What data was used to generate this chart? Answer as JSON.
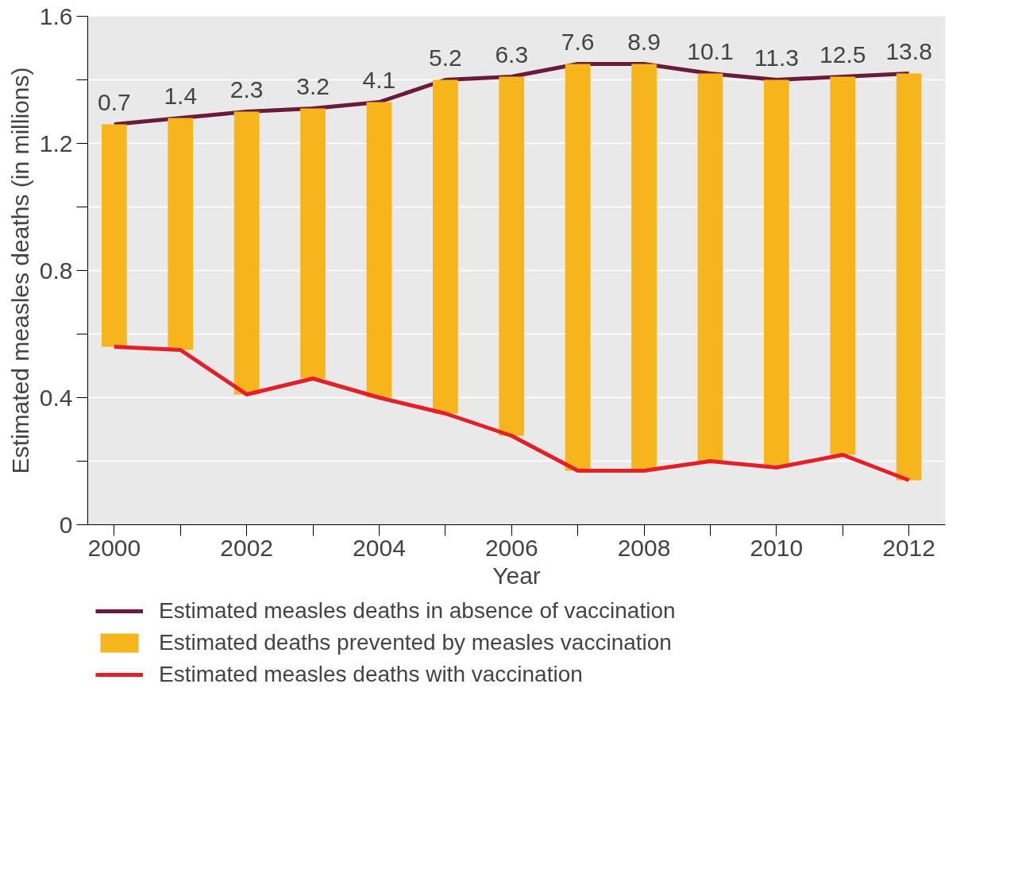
{
  "chart_data": {
    "type": "bar",
    "xlabel": "Year",
    "ylabel": "Estimated measles deaths (in millions)",
    "x": [
      2000,
      2001,
      2002,
      2003,
      2004,
      2005,
      2006,
      2007,
      2008,
      2009,
      2010,
      2011,
      2012
    ],
    "xlim": [
      1999.6,
      2012.55
    ],
    "ylim": [
      0,
      1.6
    ],
    "xticks": [
      2000,
      {
        "value": 2001,
        "label": null
      },
      2002,
      {
        "value": 2003,
        "label": null
      },
      2004,
      {
        "value": 2005,
        "label": null
      },
      2006,
      {
        "value": 2007,
        "label": null
      },
      2008,
      {
        "value": 2009,
        "label": null
      },
      2010,
      {
        "value": 2011,
        "label": null
      },
      2012
    ],
    "yticks": [
      0,
      {
        "value": 0.2,
        "label": null
      },
      0.4,
      {
        "value": 0.6,
        "label": null
      },
      0.8,
      {
        "value": 1.0,
        "label": null
      },
      1.2,
      {
        "value": 1.4,
        "label": null
      },
      1.6
    ],
    "grid": "y",
    "legend": "bottom",
    "series": [
      {
        "name": "Estimated measles deaths in absence of vaccination",
        "type": "line",
        "color": "#6b1a3a",
        "values": [
          1.26,
          1.28,
          1.3,
          1.31,
          1.33,
          1.4,
          1.41,
          1.45,
          1.45,
          1.42,
          1.4,
          1.41,
          1.42
        ]
      },
      {
        "name": "Estimated deaths prevented by measles vaccination",
        "color": "#f5b51b",
        "base": [
          0.56,
          0.55,
          0.41,
          0.46,
          0.4,
          0.35,
          0.28,
          0.17,
          0.17,
          0.2,
          0.18,
          0.22,
          0.14
        ],
        "values": [
          0.7,
          0.73,
          0.89,
          0.85,
          0.93,
          1.05,
          1.13,
          1.28,
          1.28,
          1.22,
          1.22,
          1.19,
          1.28
        ]
      },
      {
        "name": "Estimated measles deaths with vaccination",
        "type": "line",
        "color": "#e3202a",
        "values": [
          0.56,
          0.55,
          0.41,
          0.46,
          0.4,
          0.35,
          0.28,
          0.17,
          0.17,
          0.2,
          0.18,
          0.22,
          0.14
        ]
      }
    ],
    "annotations": [
      {
        "text": "0.7",
        "x": 2000,
        "y": 1.26
      },
      {
        "text": "1.4",
        "x": 2001,
        "y": 1.28
      },
      {
        "text": "2.3",
        "x": 2002,
        "y": 1.3
      },
      {
        "text": "3.2",
        "x": 2003,
        "y": 1.31
      },
      {
        "text": "4.1",
        "x": 2004,
        "y": 1.33
      },
      {
        "text": "5.2",
        "x": 2005,
        "y": 1.4
      },
      {
        "text": "6.3",
        "x": 2006,
        "y": 1.41
      },
      {
        "text": "7.6",
        "x": 2007,
        "y": 1.45
      },
      {
        "text": "8.9",
        "x": 2008,
        "y": 1.45
      },
      {
        "text": "10.1",
        "x": 2009,
        "y": 1.42
      },
      {
        "text": "11.3",
        "x": 2010,
        "y": 1.4
      },
      {
        "text": "12.5",
        "x": 2011,
        "y": 1.41
      },
      {
        "text": "13.8",
        "x": 2012,
        "y": 1.42
      }
    ]
  }
}
